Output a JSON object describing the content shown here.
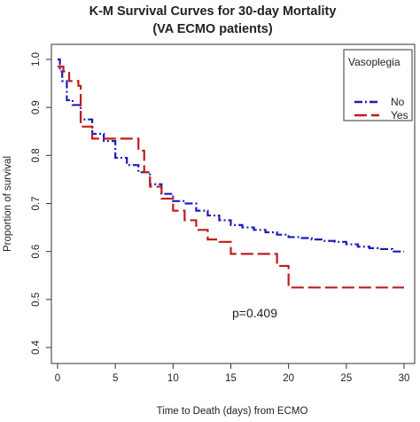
{
  "chart_data": {
    "type": "line",
    "title": "K-M Survival Curves for 30-day Mortality",
    "subtitle": "(VA ECMO patients)",
    "xlabel": "Time to Death (days) from ECMO",
    "ylabel": "Proportion of survival",
    "xlim": [
      0,
      30
    ],
    "ylim": [
      0.4,
      1.0
    ],
    "xticks": [
      0,
      5,
      10,
      15,
      20,
      25,
      30
    ],
    "yticks": [
      0.4,
      0.5,
      0.6,
      0.7,
      0.8,
      0.9,
      1.0
    ],
    "ytick_labels": [
      "0.4",
      "0.5",
      "0.6",
      "0.7",
      "0.8",
      "0.9",
      "1.0"
    ],
    "grid": false,
    "legend": {
      "title": "Vasoplegia",
      "position": "top-right"
    },
    "annotation": "p=0.409",
    "series": [
      {
        "name": "No",
        "color": "#1c1cb8",
        "dash": "dot-dash",
        "x": [
          0,
          0.2,
          0.4,
          0.8,
          1.3,
          2,
          3,
          4,
          5,
          6,
          7,
          8,
          9,
          10,
          11,
          12,
          13,
          14,
          15,
          16,
          17,
          18,
          19,
          20,
          21,
          22,
          23,
          24,
          25,
          26,
          27,
          28,
          29,
          30
        ],
        "y": [
          1.0,
          0.975,
          0.955,
          0.915,
          0.905,
          0.875,
          0.845,
          0.83,
          0.795,
          0.78,
          0.765,
          0.74,
          0.72,
          0.705,
          0.7,
          0.685,
          0.675,
          0.665,
          0.655,
          0.65,
          0.645,
          0.64,
          0.635,
          0.63,
          0.628,
          0.625,
          0.622,
          0.62,
          0.615,
          0.61,
          0.607,
          0.605,
          0.6,
          0.6
        ]
      },
      {
        "name": "Yes",
        "color": "#c01c1c",
        "dash": "long-dash",
        "x": [
          0,
          0.5,
          1,
          1.8,
          2,
          3,
          4,
          6,
          7,
          7.5,
          8,
          9,
          10,
          11,
          12,
          13,
          14,
          15,
          16,
          17,
          18,
          19,
          20,
          30
        ],
        "y": [
          0.985,
          0.975,
          0.955,
          0.945,
          0.86,
          0.835,
          0.835,
          0.835,
          0.81,
          0.765,
          0.735,
          0.71,
          0.685,
          0.665,
          0.645,
          0.625,
          0.62,
          0.595,
          0.595,
          0.595,
          0.595,
          0.57,
          0.525,
          0.525
        ]
      }
    ]
  }
}
